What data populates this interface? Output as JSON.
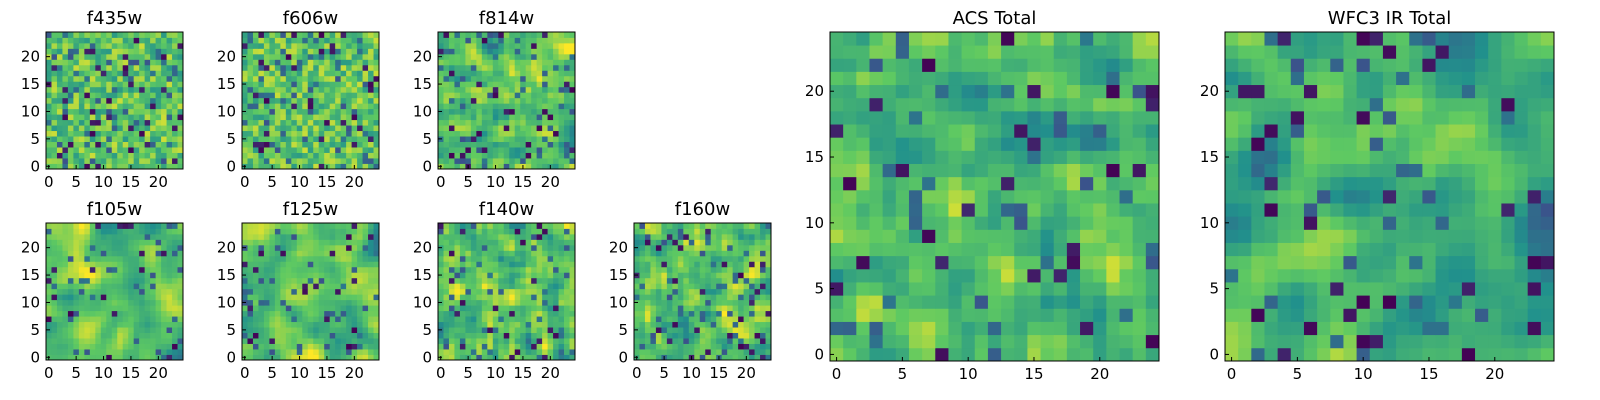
{
  "figure": {
    "colormap": "viridis",
    "colormap_stops": [
      "#440154",
      "#3b528b",
      "#21918c",
      "#5ec962",
      "#fde725"
    ]
  },
  "chart_data": [
    {
      "id": "f435w",
      "type": "heatmap",
      "title": "f435w",
      "grid": "25x25",
      "x_ticks": [
        "0",
        "5",
        "10",
        "15",
        "20"
      ],
      "y_ticks": [
        "0",
        "5",
        "10",
        "15",
        "20"
      ],
      "xlim": [
        -0.5,
        24.5
      ],
      "ylim": [
        -0.5,
        24.5
      ],
      "seed": 11,
      "smooth": 0.15,
      "mean": 0.72,
      "spread": 0.22,
      "dark_frac": 0.06
    },
    {
      "id": "f606w",
      "type": "heatmap",
      "title": "f606w",
      "grid": "25x25",
      "x_ticks": [
        "0",
        "5",
        "10",
        "15",
        "20"
      ],
      "y_ticks": [
        "0",
        "5",
        "10",
        "15",
        "20"
      ],
      "xlim": [
        -0.5,
        24.5
      ],
      "ylim": [
        -0.5,
        24.5
      ],
      "seed": 23,
      "smooth": 0.15,
      "mean": 0.73,
      "spread": 0.22,
      "dark_frac": 0.06
    },
    {
      "id": "f814w",
      "type": "heatmap",
      "title": "f814w",
      "grid": "25x25",
      "x_ticks": [
        "0",
        "5",
        "10",
        "15",
        "20"
      ],
      "y_ticks": [
        "0",
        "5",
        "10",
        "15",
        "20"
      ],
      "xlim": [
        -0.5,
        24.5
      ],
      "ylim": [
        -0.5,
        24.5
      ],
      "seed": 37,
      "smooth": 0.2,
      "mean": 0.72,
      "spread": 0.2,
      "dark_frac": 0.05
    },
    {
      "id": "f105w",
      "type": "heatmap",
      "title": "f105w",
      "grid": "25x25",
      "x_ticks": [
        "0",
        "5",
        "10",
        "15",
        "20"
      ],
      "y_ticks": [
        "0",
        "5",
        "10",
        "15",
        "20"
      ],
      "xlim": [
        -0.5,
        24.5
      ],
      "ylim": [
        -0.5,
        24.5
      ],
      "seed": 41,
      "smooth": 0.5,
      "mean": 0.72,
      "spread": 0.2,
      "dark_frac": 0.04
    },
    {
      "id": "f125w",
      "type": "heatmap",
      "title": "f125w",
      "grid": "25x25",
      "x_ticks": [
        "0",
        "5",
        "10",
        "15",
        "20"
      ],
      "y_ticks": [
        "0",
        "5",
        "10",
        "15",
        "20"
      ],
      "xlim": [
        -0.5,
        24.5
      ],
      "ylim": [
        -0.5,
        24.5
      ],
      "seed": 53,
      "smooth": 0.5,
      "mean": 0.72,
      "spread": 0.2,
      "dark_frac": 0.04
    },
    {
      "id": "f140w",
      "type": "heatmap",
      "title": "f140w",
      "grid": "25x25",
      "x_ticks": [
        "0",
        "5",
        "10",
        "15",
        "20"
      ],
      "y_ticks": [
        "0",
        "5",
        "10",
        "15",
        "20"
      ],
      "xlim": [
        -0.5,
        24.5
      ],
      "ylim": [
        -0.5,
        24.5
      ],
      "seed": 67,
      "smooth": 0.45,
      "mean": 0.72,
      "spread": 0.21,
      "dark_frac": 0.05
    },
    {
      "id": "f160w",
      "type": "heatmap",
      "title": "f160w",
      "grid": "25x25",
      "x_ticks": [
        "0",
        "5",
        "10",
        "15",
        "20"
      ],
      "y_ticks": [
        "0",
        "5",
        "10",
        "15",
        "20"
      ],
      "xlim": [
        -0.5,
        24.5
      ],
      "ylim": [
        -0.5,
        24.5
      ],
      "seed": 79,
      "smooth": 0.45,
      "mean": 0.72,
      "spread": 0.21,
      "dark_frac": 0.05
    },
    {
      "id": "acs_total",
      "type": "heatmap",
      "title": "ACS Total",
      "grid": "25x25",
      "x_ticks": [
        "0",
        "5",
        "10",
        "15",
        "20"
      ],
      "y_ticks": [
        "0",
        "5",
        "10",
        "15",
        "20"
      ],
      "xlim": [
        -0.5,
        24.5
      ],
      "ylim": [
        -0.5,
        24.5
      ],
      "seed": 97,
      "smooth": 0.3,
      "mean": 0.68,
      "spread": 0.18,
      "dark_frac": 0.035
    },
    {
      "id": "wfc3_ir_total",
      "type": "heatmap",
      "title": "WFC3 IR Total",
      "grid": "25x25",
      "x_ticks": [
        "0",
        "5",
        "10",
        "15",
        "20"
      ],
      "y_ticks": [
        "0",
        "5",
        "10",
        "15",
        "20"
      ],
      "xlim": [
        -0.5,
        24.5
      ],
      "ylim": [
        -0.5,
        24.5
      ],
      "seed": 113,
      "smooth": 0.6,
      "mean": 0.64,
      "spread": 0.2,
      "dark_frac": 0.05
    }
  ]
}
